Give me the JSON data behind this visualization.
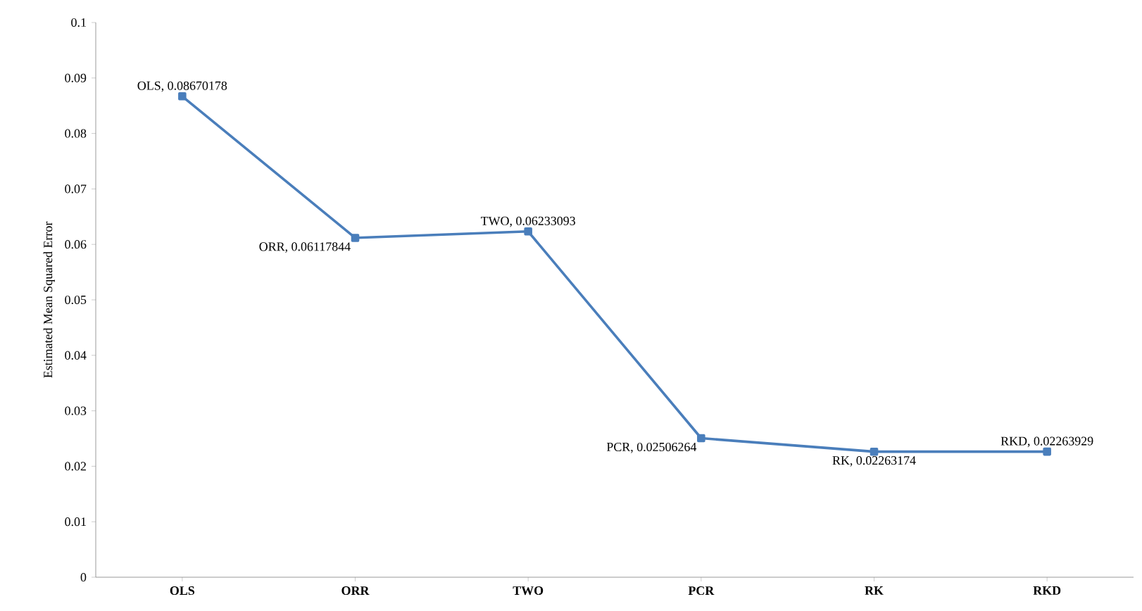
{
  "chart_data": {
    "type": "line",
    "ylabel": "Estimated Mean Squared Error",
    "categories": [
      "OLS",
      "ORR",
      "TWO",
      "PCR",
      "RK",
      "RKD"
    ],
    "values": [
      0.08670178,
      0.06117844,
      0.06233093,
      0.02506264,
      0.02263174,
      0.02263929
    ],
    "value_labels": [
      "OLS, 0.08670178",
      "ORR, 0.06117844",
      "TWO, 0.06233093",
      "PCR, 0.02506264",
      "RK, 0.02263174",
      "RKD, 0.02263929"
    ],
    "color": "#4a7ebb",
    "marker": "square",
    "line_style": "solid",
    "grid": false,
    "ylim": [
      0,
      0.1
    ],
    "yticks": [
      0,
      0.01,
      0.02,
      0.03,
      0.04,
      0.05,
      0.06,
      0.07,
      0.08,
      0.09,
      0.1
    ]
  }
}
